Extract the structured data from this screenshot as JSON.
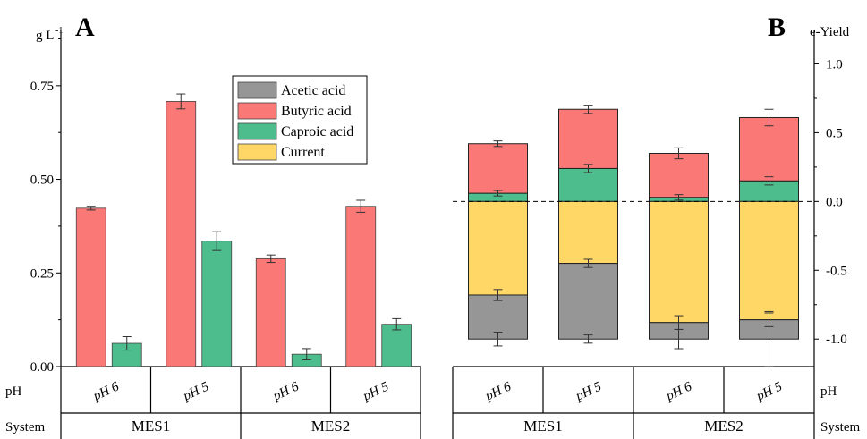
{
  "colors": {
    "acetic": "#969696",
    "butyric": "#FA7876",
    "caproic": "#4DBD8D",
    "current": "#FED766",
    "axis": "#000000"
  },
  "chart_data": [
    {
      "panel_label": "A",
      "type": "bar",
      "ylabel": "g L",
      "ylabel_superscript": "-1",
      "ylim": [
        0,
        0.9
      ],
      "yticks": [
        0,
        0.25,
        0.5,
        0.75
      ],
      "ytick_labels": [
        "0.00",
        "0.25",
        "0.50",
        "0.75"
      ],
      "row_labels": {
        "ph": "pH",
        "system": "System"
      },
      "categories": [
        {
          "ph": "pH 6",
          "system": "MES1"
        },
        {
          "ph": "pH 5",
          "system": "MES1"
        },
        {
          "ph": "pH 6",
          "system": "MES2"
        },
        {
          "ph": "pH 5",
          "system": "MES2"
        }
      ],
      "systems": [
        "MES1",
        "MES2"
      ],
      "series": [
        {
          "name": "Butyric acid",
          "color_key": "butyric",
          "values": [
            0.423,
            0.708,
            0.288,
            0.428
          ],
          "errors": [
            0.005,
            0.02,
            0.01,
            0.016
          ]
        },
        {
          "name": "Caproic acid",
          "color_key": "caproic",
          "values": [
            0.062,
            0.335,
            0.033,
            0.113
          ],
          "errors": [
            0.018,
            0.025,
            0.015,
            0.015
          ]
        }
      ],
      "grid": false
    },
    {
      "panel_label": "B",
      "type": "bar",
      "stacked": true,
      "ylabel": "e-Yield",
      "ylim": [
        -1.2,
        1.25
      ],
      "yticks": [
        -1.0,
        -0.5,
        0.0,
        0.5,
        1.0
      ],
      "ytick_labels": [
        "-1.0",
        "-0.5",
        "0.0",
        "0.5",
        "1.0"
      ],
      "row_labels": {
        "ph": "pH",
        "system": "System"
      },
      "categories": [
        {
          "ph": "pH 6",
          "system": "MES1"
        },
        {
          "ph": "pH 5",
          "system": "MES1"
        },
        {
          "ph": "pH 6",
          "system": "MES2"
        },
        {
          "ph": "pH 5",
          "system": "MES2"
        }
      ],
      "systems": [
        "MES1",
        "MES2"
      ],
      "legend": {
        "position": "top-right",
        "entries": [
          {
            "name": "Acetic acid",
            "color_key": "acetic"
          },
          {
            "name": "Butyric acid",
            "color_key": "butyric"
          },
          {
            "name": "Caproic acid",
            "color_key": "caproic"
          },
          {
            "name": "Current",
            "color_key": "current"
          }
        ]
      },
      "stacks_positive": [
        {
          "name": "Caproic acid",
          "color_key": "caproic",
          "values": [
            0.06,
            0.24,
            0.03,
            0.15
          ],
          "errors": [
            0.02,
            0.03,
            0.02,
            0.03
          ]
        },
        {
          "name": "Butyric acid",
          "color_key": "butyric",
          "values": [
            0.36,
            0.43,
            0.32,
            0.46
          ],
          "errors": [
            0.02,
            0.03,
            0.04,
            0.06
          ]
        }
      ],
      "stacks_negative": [
        {
          "name": "Current",
          "color_key": "current",
          "values": [
            0.68,
            0.45,
            0.88,
            0.86
          ],
          "errors": [
            0.04,
            0.03,
            0.05,
            0.05
          ]
        },
        {
          "name": "Acetic acid",
          "color_key": "acetic",
          "values": [
            0.32,
            0.55,
            0.12,
            0.14
          ],
          "errors": [
            0.05,
            0.03,
            0.07,
            0.2
          ]
        }
      ],
      "reference_line": 0,
      "grid": false
    }
  ]
}
